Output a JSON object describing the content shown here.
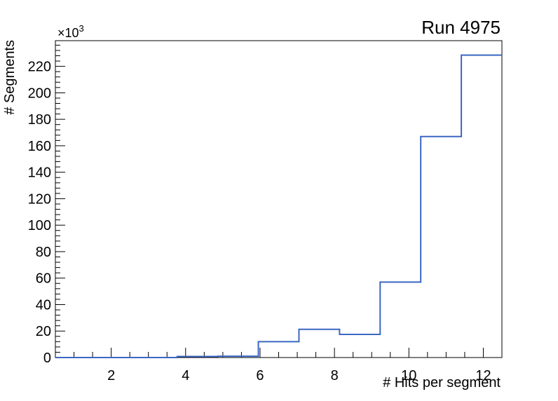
{
  "chart_data": {
    "type": "step-histogram",
    "title": "Run 4975",
    "xlabel": "# Hits per segment",
    "ylabel": "# Segments",
    "y_axis_multiplier": "×10",
    "y_axis_multiplier_exponent": "3",
    "bin_edges": [
      0.5,
      1.5909,
      2.6818,
      3.7727,
      4.8636,
      5.9545,
      7.0455,
      8.1364,
      9.2273,
      10.3182,
      11.4091,
      12.5
    ],
    "values": [
      0,
      0,
      0,
      800,
      1000,
      12000,
      21300,
      17500,
      57000,
      167000,
      228500
    ],
    "xlim": [
      0.5,
      12.5
    ],
    "ylim": [
      0,
      239400
    ],
    "x_major_ticks": [
      2,
      4,
      6,
      8,
      10,
      12
    ],
    "x_minor_step": 0.5,
    "y_major_step": 20000,
    "y_minor_step": 4000,
    "y_tick_label_divisor": 1000,
    "y_tick_labels": [
      "0",
      "20",
      "40",
      "60",
      "80",
      "100",
      "120",
      "140",
      "160",
      "180",
      "200",
      "220"
    ],
    "grid": false,
    "legend_position": "none",
    "line_color": "#3b67c2",
    "frame_color": "#000000",
    "background_color": "#ffffff"
  }
}
